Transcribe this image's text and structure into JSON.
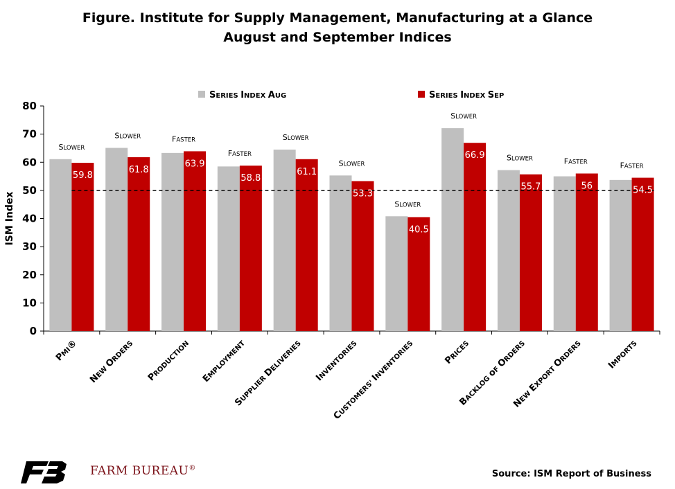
{
  "page": {
    "title_line1": "Figure. Institute for Supply Management, Manufacturing at a Glance",
    "title_line2": "August and September Indices",
    "source": "Source: ISM Report of Business",
    "logo_text": "FARM BUREAU",
    "logo_mark": "®"
  },
  "colors": {
    "aug": "#bfbfbf",
    "sep": "#c00000",
    "reference_line": "#000000"
  },
  "chart_data": {
    "type": "bar",
    "categories": [
      "PMI®",
      "New Orders",
      "Production",
      "Employment",
      "Supplier Deliveries",
      "Inventories",
      "Customers' Inventories",
      "Prices",
      "Backlog of Orders",
      "New Export Orders",
      "Imports"
    ],
    "series": [
      {
        "name": "Series Index Aug",
        "values": [
          61.1,
          65.1,
          63.3,
          58.5,
          64.5,
          55.3,
          40.8,
          72.1,
          57.2,
          55.0,
          53.7
        ]
      },
      {
        "name": "Series Index Sep",
        "values": [
          59.8,
          61.8,
          63.9,
          58.8,
          61.1,
          53.3,
          40.5,
          66.9,
          55.7,
          56,
          54.5
        ],
        "labels": [
          "59.8",
          "61.8",
          "63.9",
          "58.8",
          "61.1",
          "53.3",
          "40.5",
          "66.9",
          "55.7",
          "56",
          "54.5"
        ]
      }
    ],
    "annotations": [
      "Slower",
      "Slower",
      "Faster",
      "Faster",
      "Slower",
      "Slower",
      "Slower",
      "Slower",
      "Slower",
      "Faster",
      "Faster"
    ],
    "ylabel": "ISM Index",
    "xlabel": "",
    "ylim": [
      0,
      80
    ],
    "yticks": [
      0,
      10,
      20,
      30,
      40,
      50,
      60,
      70,
      80
    ],
    "reference_line": 50,
    "legend_placement": "top-center",
    "grid": false
  }
}
